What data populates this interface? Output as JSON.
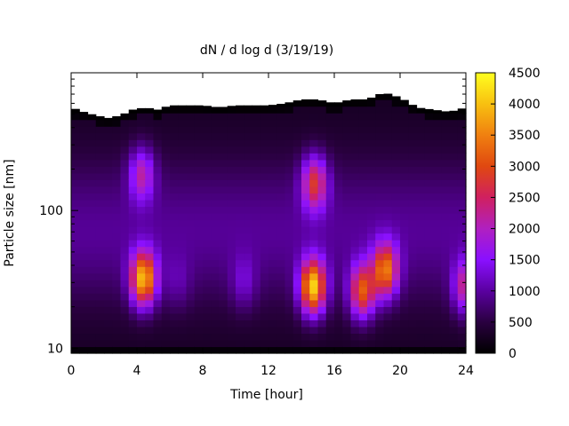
{
  "chart_data": {
    "type": "heatmap",
    "title": "dN / d log d (3/19/19)",
    "xlabel": "Time [hour]",
    "ylabel": "Particle size [nm]",
    "xlim": [
      0,
      24
    ],
    "ylim": [
      9.2,
      1000
    ],
    "ylog": true,
    "x_ticks": [
      0,
      4,
      8,
      12,
      16,
      20,
      24
    ],
    "y_ticks": [
      10,
      100
    ],
    "colorbar": {
      "range": [
        0,
        4500
      ],
      "ticks": [
        0,
        500,
        1000,
        1500,
        2000,
        2500,
        3000,
        3500,
        4000,
        4500
      ],
      "colormap": [
        "#000000",
        "#2a0040",
        "#5a00a0",
        "#8a10ff",
        "#b020c0",
        "#d02060",
        "#e04810",
        "#f08010",
        "#f8c010",
        "#ffff20"
      ]
    },
    "background_level": 700,
    "upper_size_limit": [
      [
        0,
        560
      ],
      [
        0.75,
        520
      ],
      [
        1.5,
        490
      ],
      [
        2.25,
        470
      ],
      [
        3,
        490
      ],
      [
        3.75,
        540
      ],
      [
        4.5,
        560
      ],
      [
        5.25,
        540
      ],
      [
        6,
        580
      ],
      [
        7,
        580
      ],
      [
        8,
        580
      ],
      [
        9,
        560
      ],
      [
        10,
        580
      ],
      [
        11,
        580
      ],
      [
        12,
        580
      ],
      [
        13,
        600
      ],
      [
        14,
        640
      ],
      [
        15,
        640
      ],
      [
        16,
        600
      ],
      [
        17,
        640
      ],
      [
        18,
        640
      ],
      [
        19,
        720
      ],
      [
        20,
        660
      ],
      [
        21,
        560
      ],
      [
        22,
        540
      ],
      [
        23,
        520
      ],
      [
        24,
        560
      ]
    ],
    "events": [
      {
        "time": 4.4,
        "size": 32,
        "peak": 3900
      },
      {
        "time": 4.3,
        "size": 185,
        "peak": 2100
      },
      {
        "time": 14.7,
        "size": 28,
        "peak": 4100
      },
      {
        "time": 14.8,
        "size": 160,
        "peak": 2700
      },
      {
        "time": 17.7,
        "size": 26,
        "peak": 3100
      },
      {
        "time": 19.1,
        "size": 37,
        "peak": 3300
      },
      {
        "time": 24,
        "size": 28,
        "peak": 2300
      },
      {
        "time": 10.5,
        "size": 30,
        "peak": 1200
      },
      {
        "time": 6.5,
        "size": 30,
        "peak": 1000
      }
    ]
  }
}
